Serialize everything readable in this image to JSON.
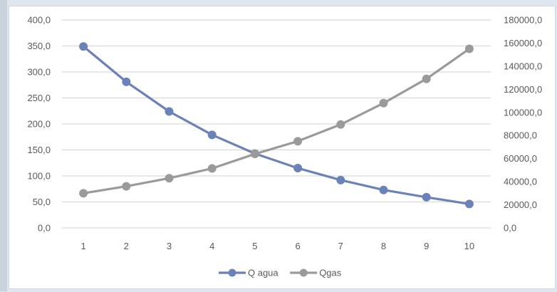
{
  "chart_data": {
    "type": "line",
    "title": "",
    "xlabel": "",
    "ylabel": "",
    "y2label": "",
    "categories": [
      "1",
      "2",
      "3",
      "4",
      "5",
      "6",
      "7",
      "8",
      "9",
      "10"
    ],
    "y_left": {
      "min": 0,
      "max": 400,
      "step": 50,
      "tick_labels": [
        "0,0",
        "50,0",
        "100,0",
        "150,0",
        "200,0",
        "250,0",
        "300,0",
        "350,0",
        "400,0"
      ]
    },
    "y_right": {
      "min": 0,
      "max": 180000,
      "step": 20000,
      "tick_labels": [
        "0,0",
        "20000,0",
        "40000,0",
        "60000,0",
        "80000,0",
        "100000,0",
        "120000,0",
        "140000,0",
        "160000,0",
        "180000,0"
      ]
    },
    "series": [
      {
        "name": "Q agua",
        "axis": "left",
        "color": "#6b82b8",
        "values": [
          349,
          281,
          224,
          179,
          143,
          115,
          92,
          73,
          59,
          46
        ]
      },
      {
        "name": "Qgas",
        "axis": "right",
        "color": "#9a9a9a",
        "values": [
          30000,
          36000,
          43000,
          51500,
          64000,
          75000,
          89500,
          108000,
          129000,
          155000
        ]
      }
    ],
    "grid": true,
    "legend": "bottom"
  },
  "colors": {
    "gridline": "#d9d9d9",
    "tick_text": "#595959",
    "background": "#ffffff"
  }
}
